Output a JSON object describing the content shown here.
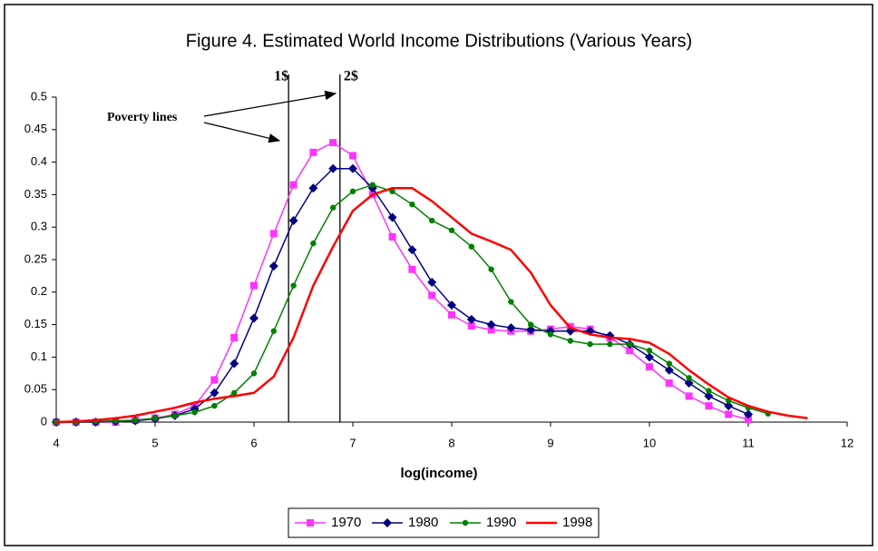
{
  "chart_data": {
    "type": "line",
    "title": "Figure 4. Estimated World Income Distributions (Various Years)",
    "x_label": "log(income)",
    "x": [
      4.0,
      4.2,
      4.4,
      4.6,
      4.8,
      5.0,
      5.2,
      5.4,
      5.6,
      5.8,
      6.0,
      6.2,
      6.4,
      6.6,
      6.8,
      7.0,
      7.2,
      7.4,
      7.6,
      7.8,
      8.0,
      8.2,
      8.4,
      8.6,
      8.8,
      9.0,
      9.2,
      9.4,
      9.6,
      9.8,
      10.0,
      10.2,
      10.4,
      10.6,
      10.8,
      11.0,
      11.2,
      11.4,
      11.6
    ],
    "series": [
      {
        "name": "1970",
        "color": "#ff33ff",
        "marker": "square",
        "values": [
          0,
          0,
          0,
          0,
          0.003,
          0.006,
          0.012,
          0.025,
          0.065,
          0.13,
          0.21,
          0.29,
          0.365,
          0.415,
          0.43,
          0.41,
          0.35,
          0.285,
          0.235,
          0.195,
          0.165,
          0.148,
          0.142,
          0.14,
          0.14,
          0.143,
          0.147,
          0.143,
          0.13,
          0.11,
          0.085,
          0.06,
          0.04,
          0.025,
          0.012,
          0.004,
          null,
          null,
          null
        ]
      },
      {
        "name": "1980",
        "color": "#000080",
        "marker": "diamond",
        "values": [
          0,
          0,
          0,
          0.001,
          0.002,
          0.005,
          0.01,
          0.02,
          0.045,
          0.09,
          0.16,
          0.24,
          0.31,
          0.36,
          0.39,
          0.39,
          0.36,
          0.315,
          0.265,
          0.215,
          0.18,
          0.158,
          0.15,
          0.145,
          0.142,
          0.14,
          0.14,
          0.14,
          0.133,
          0.12,
          0.1,
          0.08,
          0.06,
          0.04,
          0.025,
          0.012,
          null,
          null,
          null
        ]
      },
      {
        "name": "1990",
        "color": "#008000",
        "marker": "circle",
        "values": [
          0,
          0,
          0.001,
          0.002,
          0.003,
          0.006,
          0.01,
          0.015,
          0.025,
          0.045,
          0.075,
          0.14,
          0.21,
          0.275,
          0.33,
          0.355,
          0.365,
          0.355,
          0.335,
          0.31,
          0.295,
          0.27,
          0.235,
          0.185,
          0.15,
          0.135,
          0.125,
          0.12,
          0.12,
          0.12,
          0.11,
          0.09,
          0.068,
          0.048,
          0.033,
          0.022,
          0.013,
          null,
          null
        ]
      },
      {
        "name": "1998",
        "color": "#ff0000",
        "marker": "none",
        "values": [
          0,
          0.001,
          0.003,
          0.006,
          0.01,
          0.016,
          0.022,
          0.03,
          0.036,
          0.04,
          0.045,
          0.07,
          0.13,
          0.21,
          0.27,
          0.325,
          0.35,
          0.36,
          0.36,
          0.34,
          0.315,
          0.29,
          0.278,
          0.265,
          0.23,
          0.18,
          0.145,
          0.135,
          0.13,
          0.128,
          0.122,
          0.105,
          0.08,
          0.058,
          0.038,
          0.025,
          0.016,
          0.01,
          0.006
        ]
      }
    ],
    "vlines": [
      {
        "x": 6.35,
        "label": "1$"
      },
      {
        "x": 6.87,
        "label": "2$"
      }
    ],
    "annotation": "Poverty lines",
    "xlim": [
      4,
      12
    ],
    "xticks": [
      4,
      5,
      6,
      7,
      8,
      9,
      10,
      11,
      12
    ],
    "ylim": [
      0,
      0.5
    ],
    "yticks": [
      0,
      0.05,
      0.1,
      0.15,
      0.2,
      0.25,
      0.3,
      0.35,
      0.4,
      0.45,
      0.5
    ],
    "legend": "bottom"
  }
}
